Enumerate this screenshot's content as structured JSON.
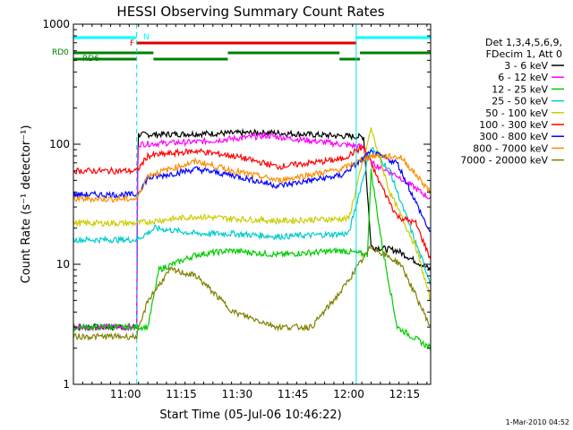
{
  "chart_data": {
    "type": "line",
    "title": "HESSI Observing Summary Count Rates",
    "xlabel": "Start Time (05-Jul-06 10:46:22)",
    "ylabel": "Count Rate (s⁻¹ detector⁻¹)",
    "y_scale": "log",
    "ylim": [
      1,
      1000
    ],
    "xlim_minutes_after_1046": [
      0,
      96
    ],
    "x_tick_labels": [
      "11:00",
      "11:15",
      "11:30",
      "11:45",
      "12:00",
      "12:15"
    ],
    "x_ticks_minutes_after_1046": [
      14,
      29,
      44,
      59,
      74,
      89
    ],
    "y_tick_labels": [
      "1",
      "10",
      "100",
      "1000"
    ],
    "y_ticks": [
      1,
      10,
      100,
      1000
    ],
    "legend_header": [
      "Det 1,3,4,5,6,9,",
      "FDecim 1, Att 0"
    ],
    "legend_position": "right",
    "series": [
      {
        "name": "3 - 6 keV",
        "color": "#000000",
        "points": [
          [
            0,
            3
          ],
          [
            17,
            3
          ],
          [
            17.3,
            120
          ],
          [
            52,
            125
          ],
          [
            78,
            115
          ],
          [
            80,
            14
          ],
          [
            87,
            13
          ],
          [
            96,
            9
          ]
        ]
      },
      {
        "name": "6 - 12 keV",
        "color": "#ff00ff",
        "points": [
          [
            0,
            3
          ],
          [
            17,
            3
          ],
          [
            17.3,
            100
          ],
          [
            34,
            105
          ],
          [
            52,
            118
          ],
          [
            78,
            95
          ],
          [
            80,
            70
          ],
          [
            87,
            55
          ],
          [
            96,
            35
          ]
        ]
      },
      {
        "name": "12 - 25 keV",
        "color": "#00cc00",
        "points": [
          [
            0,
            3
          ],
          [
            20,
            3
          ],
          [
            23,
            9
          ],
          [
            33,
            12
          ],
          [
            42,
            13
          ],
          [
            55,
            12
          ],
          [
            72,
            13
          ],
          [
            79,
            12
          ],
          [
            80,
            60
          ],
          [
            83,
            14
          ],
          [
            87,
            3
          ],
          [
            96,
            2
          ]
        ]
      },
      {
        "name": "25 - 50 keV",
        "color": "#00cccc",
        "points": [
          [
            0,
            16
          ],
          [
            17,
            16
          ],
          [
            22,
            20
          ],
          [
            33,
            18
          ],
          [
            43,
            18
          ],
          [
            55,
            17
          ],
          [
            74,
            18
          ],
          [
            80,
            95
          ],
          [
            85,
            60
          ],
          [
            92,
            15
          ],
          [
            96,
            7
          ]
        ]
      },
      {
        "name": "50 - 100 keV",
        "color": "#cccc00",
        "points": [
          [
            0,
            22
          ],
          [
            17,
            22
          ],
          [
            22,
            23
          ],
          [
            33,
            25
          ],
          [
            43,
            24
          ],
          [
            55,
            23
          ],
          [
            74,
            24
          ],
          [
            80,
            135
          ],
          [
            85,
            40
          ],
          [
            92,
            14
          ],
          [
            96,
            5
          ]
        ]
      },
      {
        "name": "100 - 300 keV",
        "color": "#ff0000",
        "points": [
          [
            0,
            60
          ],
          [
            17,
            60
          ],
          [
            20,
            80
          ],
          [
            33,
            88
          ],
          [
            43,
            80
          ],
          [
            55,
            65
          ],
          [
            72,
            75
          ],
          [
            78,
            95
          ],
          [
            82,
            50
          ],
          [
            87,
            25
          ],
          [
            92,
            22
          ],
          [
            96,
            11
          ]
        ]
      },
      {
        "name": "300 - 800 keV",
        "color": "#0000ff",
        "points": [
          [
            0,
            38
          ],
          [
            17,
            38
          ],
          [
            20,
            52
          ],
          [
            33,
            62
          ],
          [
            43,
            55
          ],
          [
            55,
            45
          ],
          [
            72,
            55
          ],
          [
            80,
            85
          ],
          [
            87,
            70
          ],
          [
            96,
            18
          ]
        ]
      },
      {
        "name": "800 - 7000 keV",
        "color": "#ff8c00",
        "points": [
          [
            0,
            35
          ],
          [
            17,
            35
          ],
          [
            20,
            55
          ],
          [
            33,
            72
          ],
          [
            43,
            60
          ],
          [
            55,
            50
          ],
          [
            72,
            62
          ],
          [
            80,
            80
          ],
          [
            88,
            78
          ],
          [
            96,
            40
          ]
        ]
      },
      {
        "name": "7000 - 20000 keV",
        "color": "#808000",
        "points": [
          [
            0,
            2.5
          ],
          [
            17,
            2.5
          ],
          [
            20,
            5
          ],
          [
            26,
            9
          ],
          [
            33,
            8
          ],
          [
            43,
            4
          ],
          [
            55,
            3
          ],
          [
            64,
            3
          ],
          [
            72,
            6
          ],
          [
            80,
            14
          ],
          [
            88,
            10
          ],
          [
            96,
            3
          ]
        ]
      }
    ],
    "flag_bars": [
      {
        "label": "N",
        "color": "#00ffff",
        "segments": [
          [
            0,
            17
          ],
          [
            76,
            96
          ]
        ]
      },
      {
        "label": "F",
        "color": "#dd0000",
        "segments": [
          [
            17,
            76
          ]
        ]
      },
      {
        "label": "RD0",
        "color": "#008000",
        "segments": [
          [
            0,
            21.5
          ],
          [
            41.5,
            71.5
          ],
          [
            77,
            96
          ]
        ]
      },
      {
        "label": "RD6",
        "color": "#008000",
        "segments": [
          [
            0,
            17
          ],
          [
            21.5,
            41.5
          ],
          [
            71.5,
            77
          ]
        ]
      }
    ],
    "vertical_markers_minutes": [
      0,
      17,
      76,
      96
    ]
  },
  "timestamp": "1-Mar-2010 04:52"
}
